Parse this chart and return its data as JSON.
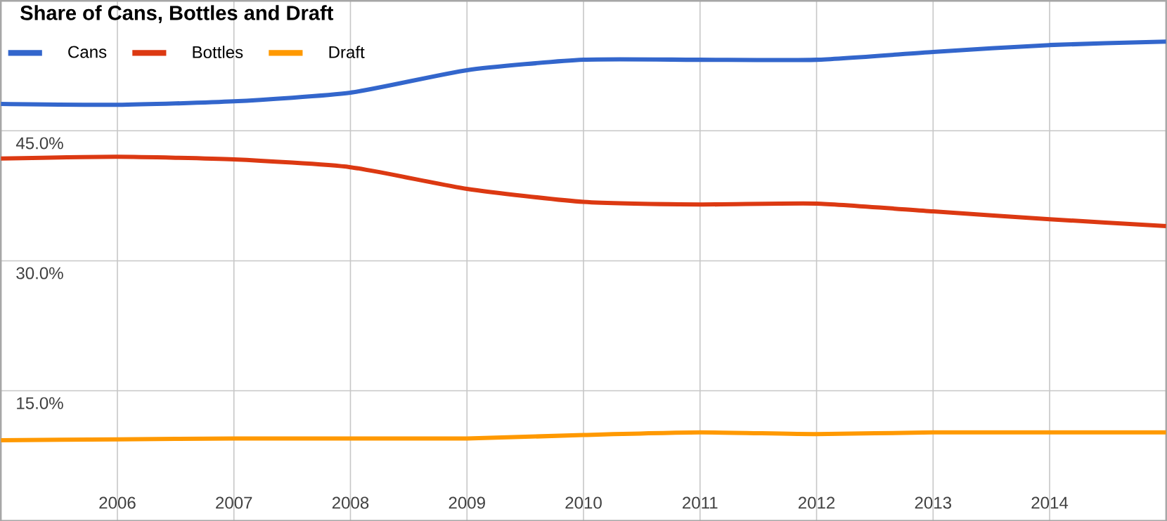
{
  "chart_data": {
    "type": "line",
    "title": "Share of Cans, Bottles and Draft",
    "x": [
      2005,
      2006,
      2007,
      2008,
      2009,
      2010,
      2011,
      2012,
      2013,
      2014,
      2015
    ],
    "xlim": [
      2005,
      2015
    ],
    "xticks": [
      2006,
      2007,
      2008,
      2009,
      2010,
      2011,
      2012,
      2013,
      2014
    ],
    "ylim": [
      0,
      60
    ],
    "yticks": [
      {
        "value": 15,
        "label": "15.0%"
      },
      {
        "value": 30,
        "label": "30.0%"
      },
      {
        "value": 45,
        "label": "45.0%"
      }
    ],
    "grid": true,
    "legend": "top left",
    "series": [
      {
        "name": "Cans",
        "color": "#3366cc",
        "values": [
          48.1,
          48.0,
          48.4,
          49.4,
          52.0,
          53.2,
          53.2,
          53.2,
          54.1,
          54.9,
          55.3
        ]
      },
      {
        "name": "Bottles",
        "color": "#dc3912",
        "values": [
          41.8,
          42.0,
          41.7,
          40.8,
          38.3,
          36.8,
          36.5,
          36.6,
          35.7,
          34.8,
          34.0
        ]
      },
      {
        "name": "Draft",
        "color": "#ff9900",
        "values": [
          9.3,
          9.4,
          9.5,
          9.5,
          9.5,
          9.9,
          10.2,
          10.0,
          10.2,
          10.2,
          10.2
        ]
      }
    ]
  }
}
